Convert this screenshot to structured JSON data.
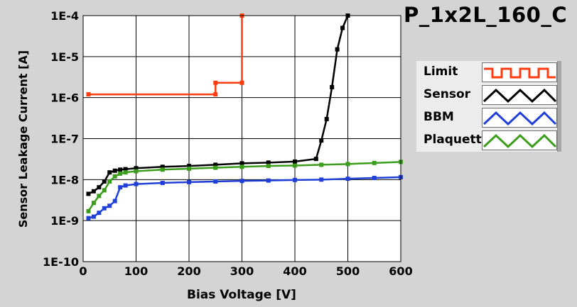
{
  "chart_data": {
    "type": "line",
    "title": "P_1x2L_160_C",
    "xlabel": "Bias Voltage [V]",
    "ylabel": "Sensor Leakage Current [A]",
    "xlim": [
      0,
      600
    ],
    "ylim": [
      1e-10,
      0.0001
    ],
    "yscale": "log",
    "grid": true,
    "legend_position": "right",
    "x_ticks": [
      "0",
      "100",
      "200",
      "300",
      "400",
      "500",
      "600"
    ],
    "y_ticks": [
      "1E-10",
      "1E-9",
      "1E-8",
      "1E-7",
      "1E-6",
      "1E-5",
      "1E-4"
    ],
    "series": [
      {
        "name": "Limit",
        "color": "#ff3c10",
        "points": [
          [
            10,
            1.2e-06
          ],
          [
            250,
            1.2e-06
          ],
          [
            250,
            2.3e-06
          ],
          [
            300,
            2.3e-06
          ],
          [
            300,
            0.0001
          ]
        ]
      },
      {
        "name": "Sensor",
        "color": "#000000",
        "points": [
          [
            10,
            4.5e-09
          ],
          [
            20,
            5.2e-09
          ],
          [
            30,
            6.5e-09
          ],
          [
            40,
            9e-09
          ],
          [
            50,
            1.5e-08
          ],
          [
            60,
            1.65e-08
          ],
          [
            70,
            1.75e-08
          ],
          [
            80,
            1.8e-08
          ],
          [
            100,
            1.9e-08
          ],
          [
            150,
            2.05e-08
          ],
          [
            200,
            2.15e-08
          ],
          [
            250,
            2.3e-08
          ],
          [
            300,
            2.5e-08
          ],
          [
            350,
            2.6e-08
          ],
          [
            400,
            2.75e-08
          ],
          [
            440,
            3.2e-08
          ],
          [
            450,
            9e-08
          ],
          [
            460,
            3e-07
          ],
          [
            470,
            1.8e-06
          ],
          [
            480,
            1.5e-05
          ],
          [
            490,
            5e-05
          ],
          [
            500,
            0.0001
          ]
        ]
      },
      {
        "name": "BBM",
        "color": "#1f3fd8",
        "points": [
          [
            10,
            1.15e-09
          ],
          [
            20,
            1.25e-09
          ],
          [
            30,
            1.55e-09
          ],
          [
            40,
            2e-09
          ],
          [
            50,
            2.3e-09
          ],
          [
            60,
            3e-09
          ],
          [
            70,
            6.5e-09
          ],
          [
            80,
            7.2e-09
          ],
          [
            100,
            7.8e-09
          ],
          [
            150,
            8.3e-09
          ],
          [
            200,
            8.7e-09
          ],
          [
            250,
            9e-09
          ],
          [
            300,
            9.3e-09
          ],
          [
            350,
            9.5e-09
          ],
          [
            400,
            9.8e-09
          ],
          [
            450,
            1e-08
          ],
          [
            500,
            1.05e-08
          ],
          [
            550,
            1.1e-08
          ],
          [
            600,
            1.15e-08
          ]
        ]
      },
      {
        "name": "Plaquette",
        "color": "#3c9d1c",
        "points": [
          [
            10,
            1.7e-09
          ],
          [
            20,
            2.7e-09
          ],
          [
            30,
            4e-09
          ],
          [
            40,
            5.5e-09
          ],
          [
            50,
            9e-09
          ],
          [
            60,
            1.2e-08
          ],
          [
            70,
            1.4e-08
          ],
          [
            80,
            1.5e-08
          ],
          [
            100,
            1.6e-08
          ],
          [
            150,
            1.75e-08
          ],
          [
            200,
            1.85e-08
          ],
          [
            250,
            1.95e-08
          ],
          [
            300,
            2.05e-08
          ],
          [
            350,
            2.15e-08
          ],
          [
            400,
            2.2e-08
          ],
          [
            450,
            2.3e-08
          ],
          [
            500,
            2.4e-08
          ],
          [
            550,
            2.55e-08
          ],
          [
            600,
            2.7e-08
          ]
        ]
      }
    ]
  }
}
